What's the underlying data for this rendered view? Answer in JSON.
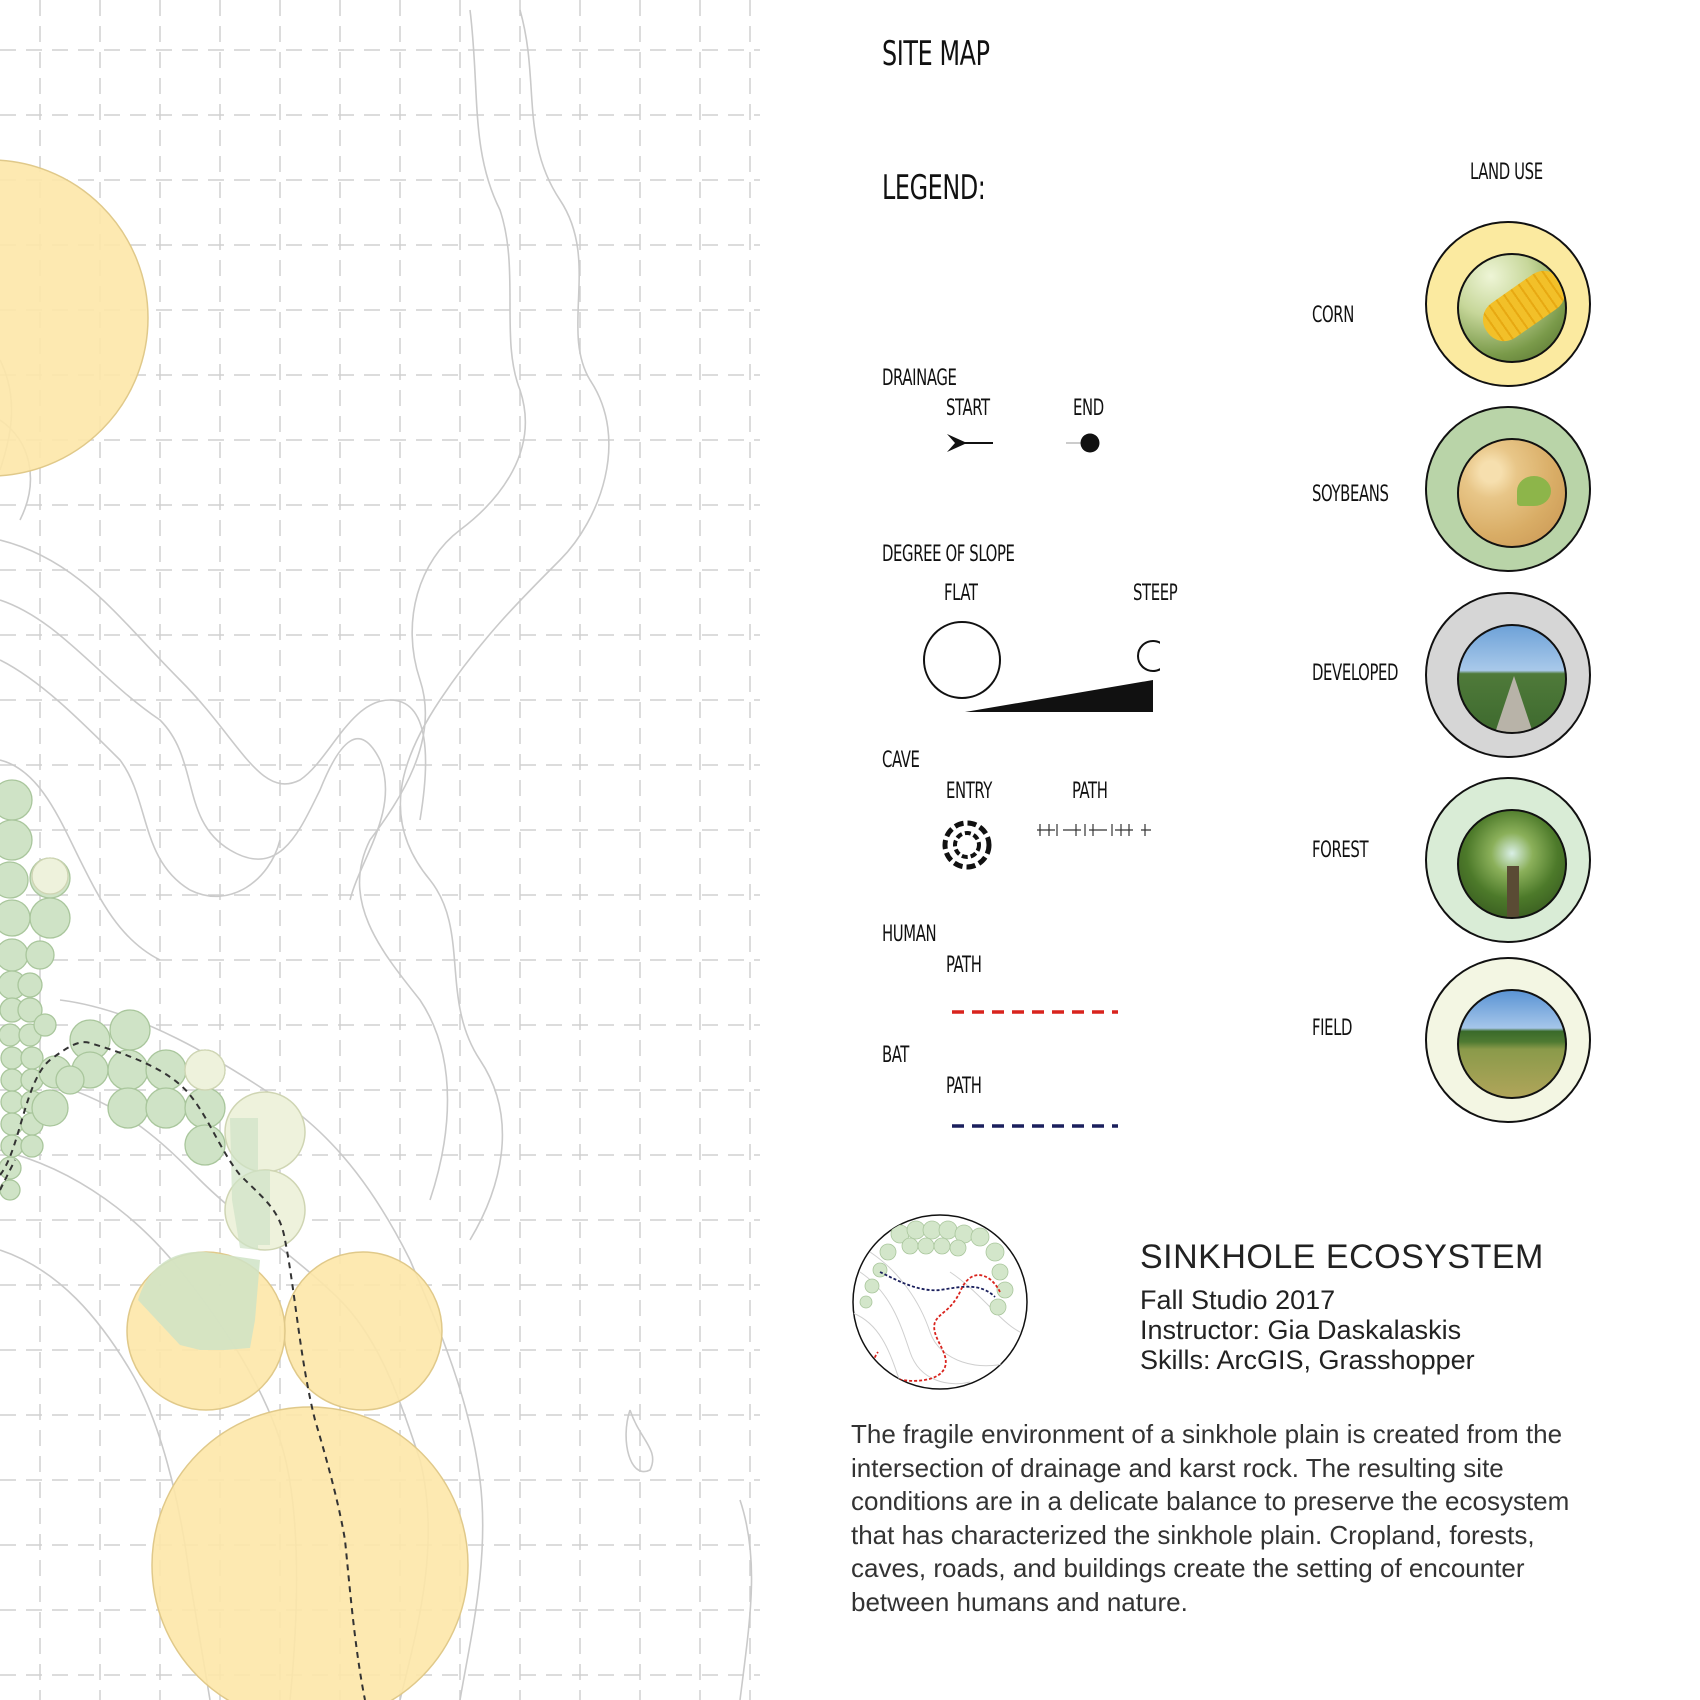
{
  "header": {
    "title": "SITE MAP"
  },
  "legend": {
    "title": "LEGEND:",
    "drainage": {
      "label": "DRAINAGE",
      "start": "START",
      "end": "END"
    },
    "slope": {
      "label": "DEGREE OF SLOPE",
      "flat": "FLAT",
      "steep": "STEEP"
    },
    "cave": {
      "label": "CAVE",
      "entry": "ENTRY",
      "path": "PATH"
    },
    "human": {
      "label": "HUMAN",
      "path": "PATH",
      "color": "#d9231d"
    },
    "bat": {
      "label": "BAT",
      "path": "PATH",
      "color": "#1a1f5c"
    }
  },
  "land_use": {
    "title": "LAND USE",
    "items": [
      {
        "label": "CORN",
        "ring_color": "#fbeaa0",
        "icon": "corn-photo"
      },
      {
        "label": "SOYBEANS",
        "ring_color": "#b9d4a8",
        "icon": "soybean-photo"
      },
      {
        "label": "DEVELOPED",
        "ring_color": "#d6d6d6",
        "icon": "road-photo"
      },
      {
        "label": "FOREST",
        "ring_color": "#d9ecd6",
        "icon": "forest-photo"
      },
      {
        "label": "FIELD",
        "ring_color": "#f3f6e3",
        "icon": "field-photo"
      }
    ]
  },
  "project": {
    "title": "SINKHOLE ECOSYSTEM",
    "studio": "Fall Studio 2017",
    "instructor": "Instructor: Gia Daskalaskis",
    "skills": "Skills: ArcGIS, Grasshopper",
    "description": "The fragile environment of a sinkhole plain is created from the intersection of drainage and karst rock. The resulting site conditions are in a delicate balance to preserve the ecosystem that has characterized the sinkhole plain. Cropland, forests, caves, roads, and buildings create the setting of encounter between humans and nature."
  },
  "colors": {
    "corn_fill": "#fde7a8",
    "soy_fill": "#cfe3c6",
    "field_fill": "#eef2dc",
    "grid": "#cfcfcf",
    "contour": "#cdcdcd"
  }
}
